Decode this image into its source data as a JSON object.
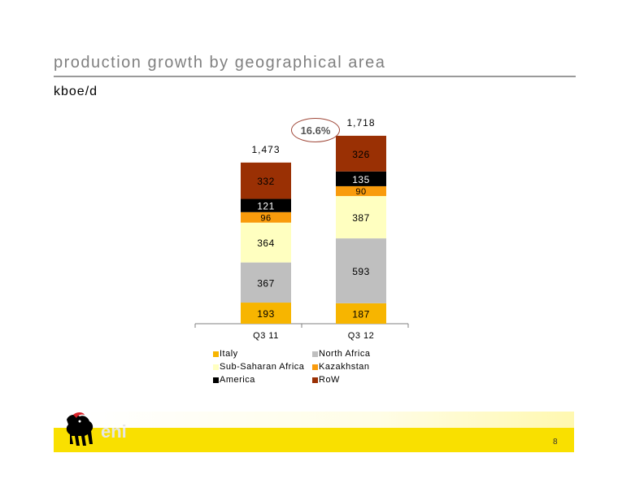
{
  "header": {
    "title": "production growth by geographical area",
    "subtitle": "kboe/d"
  },
  "growth_label": "16.6%",
  "page_number": "8",
  "chart_data": {
    "type": "bar",
    "stacked": true,
    "categories": [
      "Q3 11",
      "Q3 12"
    ],
    "totals": [
      "1,473",
      "1,718"
    ],
    "series": [
      {
        "name": "Italy",
        "color": "#f7b500",
        "values": [
          193,
          187
        ]
      },
      {
        "name": "North Africa",
        "color": "#bfbfbf",
        "values": [
          367,
          593
        ]
      },
      {
        "name": "Sub-Saharan Africa",
        "color": "#ffffc0",
        "values": [
          364,
          387
        ]
      },
      {
        "name": "Kazakhstan",
        "color": "#f99b0c",
        "values": [
          96,
          90
        ]
      },
      {
        "name": "America",
        "color": "#000000",
        "values": [
          121,
          135
        ]
      },
      {
        "name": "RoW",
        "color": "#9a3004",
        "values": [
          332,
          326
        ]
      }
    ],
    "legend_order": [
      "Italy",
      "North Africa",
      "Sub-Saharan Africa",
      "Kazakhstan",
      "America",
      "RoW"
    ],
    "legend_position": "bottom",
    "grid": false
  },
  "brand": {
    "logo_text": "eni",
    "accent_color": "#f9e000"
  }
}
